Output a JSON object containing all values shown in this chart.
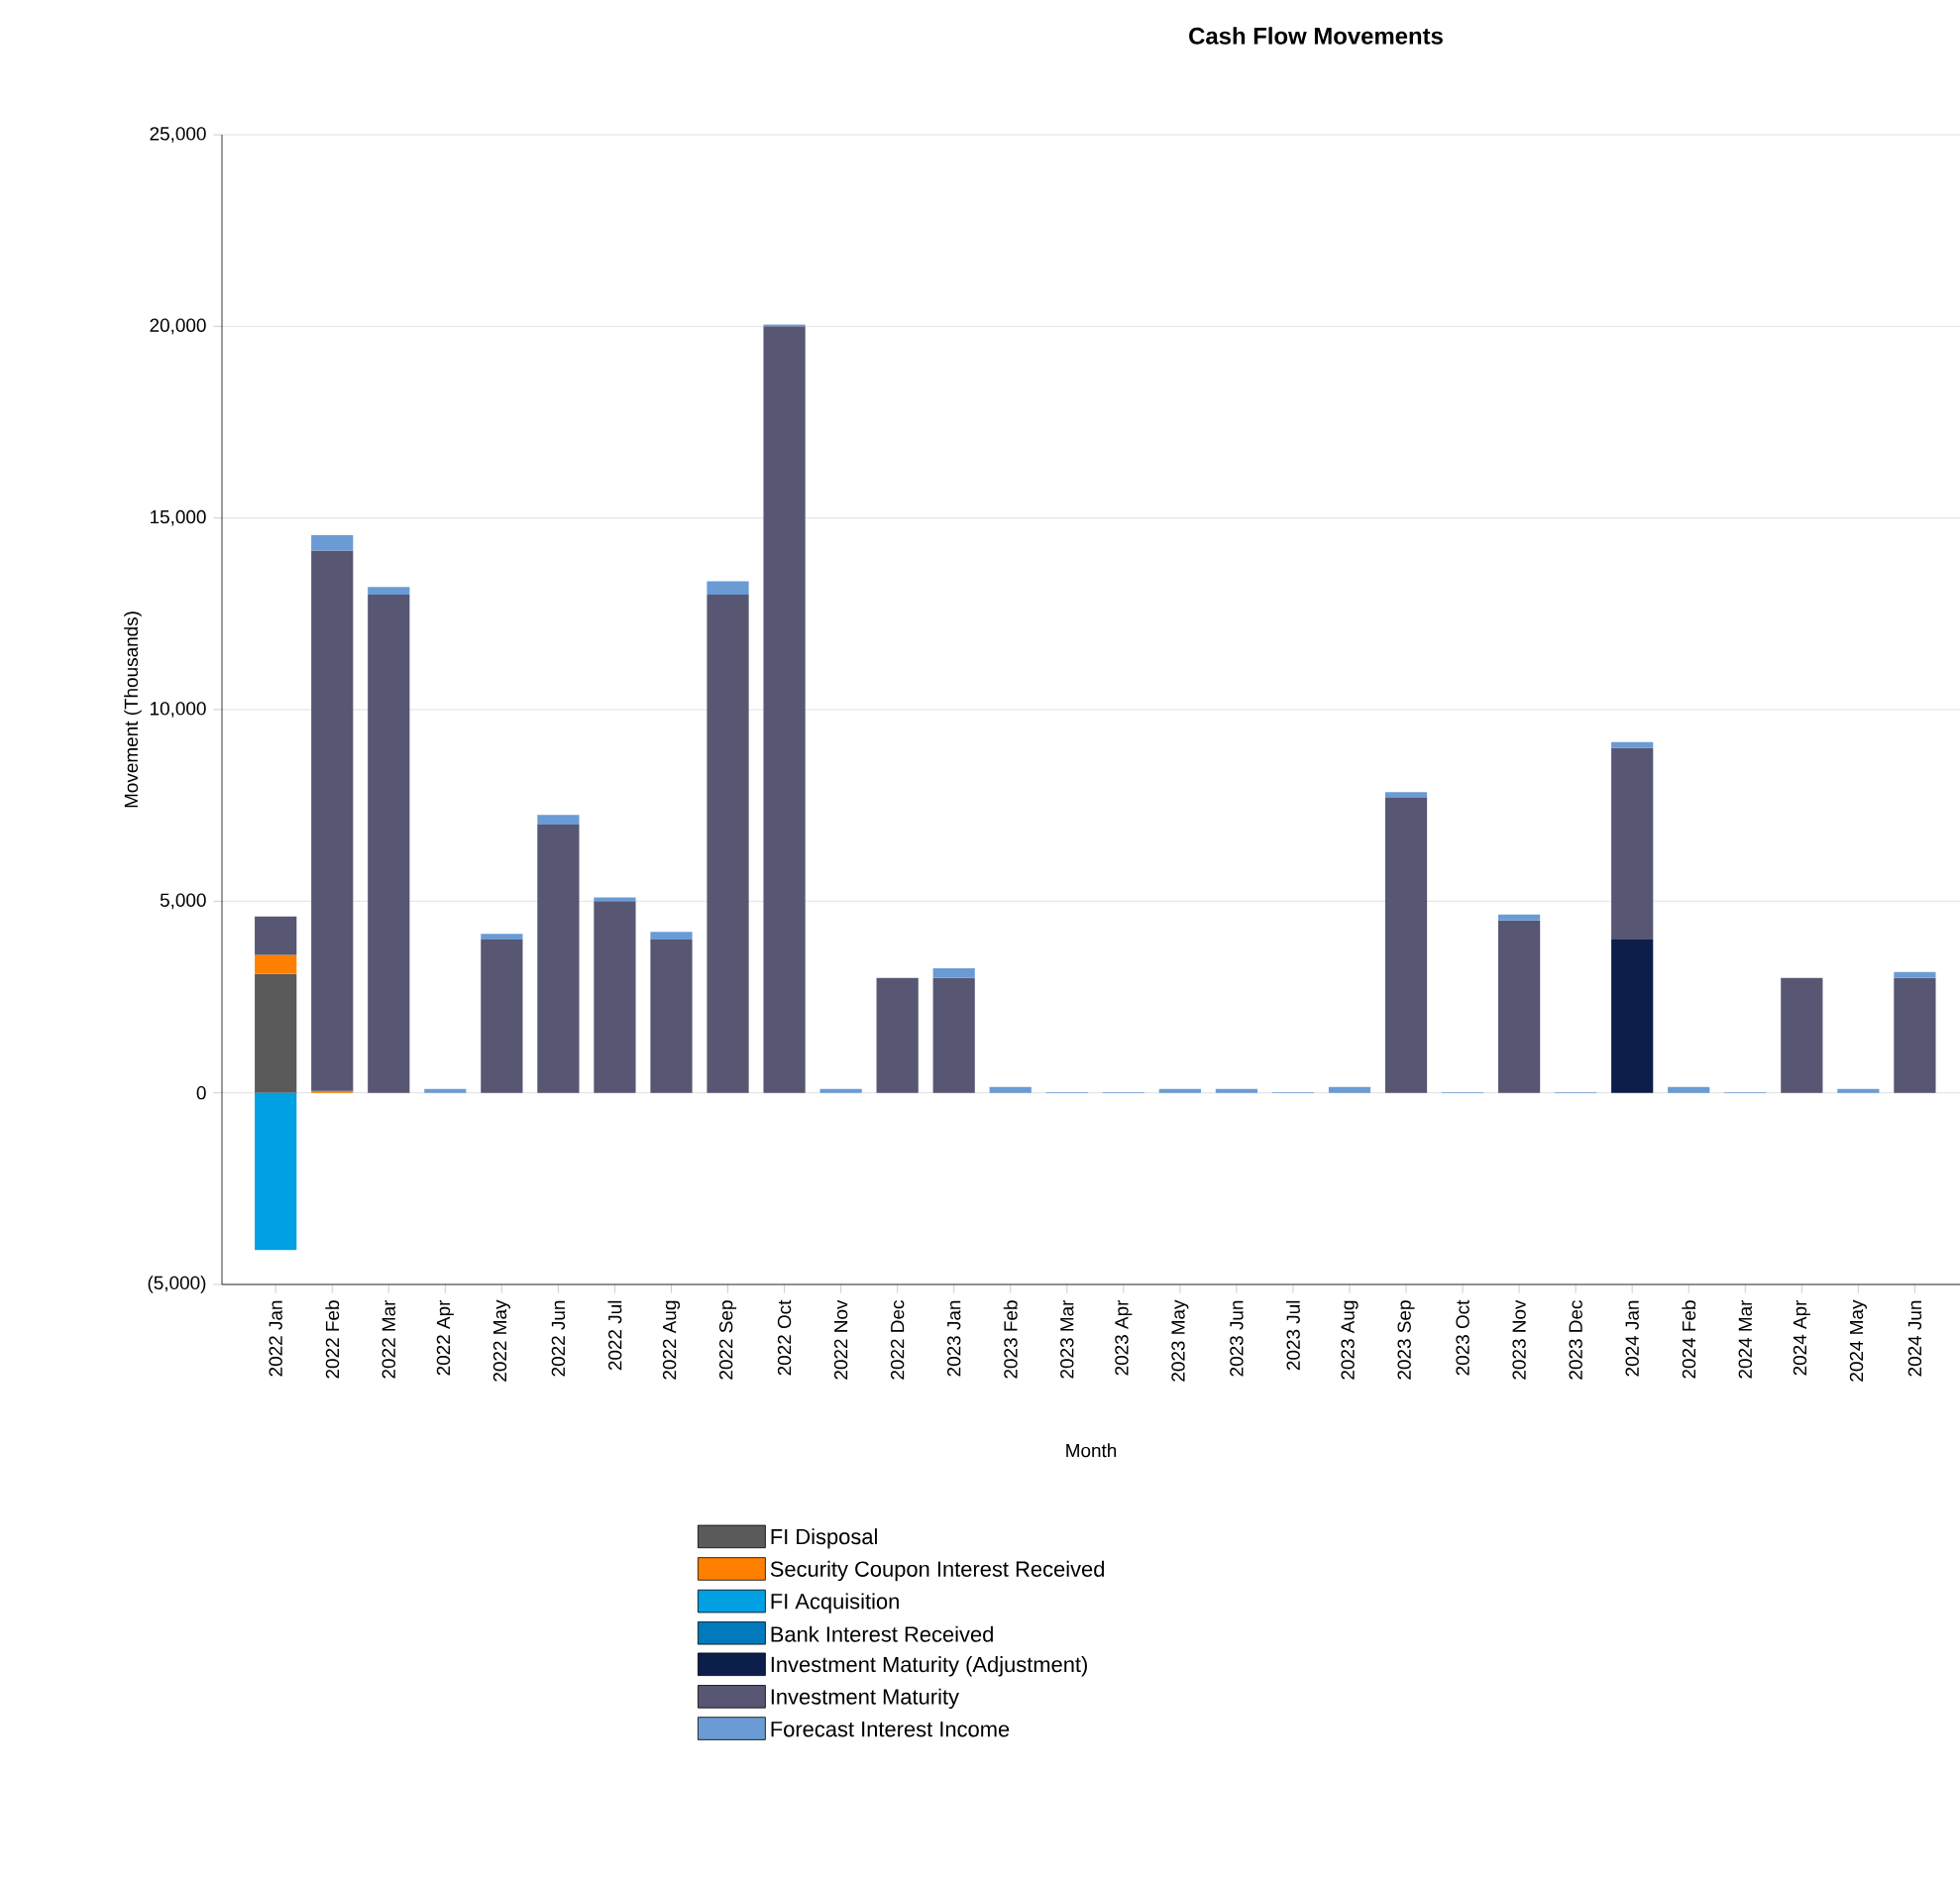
{
  "chart_data": {
    "type": "bar",
    "title": "Cash Flow Movements",
    "xlabel": "Month",
    "ylabel": "Movement (Thousands)",
    "stacked": true,
    "grid": "y",
    "legend": "bottom",
    "categories": [
      "2022 Jan",
      "2022 Feb",
      "2022 Mar",
      "2022 Apr",
      "2022 May",
      "2022 Jun",
      "2022 Jul",
      "2022 Aug",
      "2022 Sep",
      "2022 Oct",
      "2022 Nov",
      "2022 Dec",
      "2023 Jan",
      "2023 Feb",
      "2023 Mar",
      "2023 Apr",
      "2023 May",
      "2023 Jun",
      "2023 Jul",
      "2023 Aug",
      "2023 Sep",
      "2023 Oct",
      "2023 Nov",
      "2023 Dec",
      "2024 Jan",
      "2024 Feb",
      "2024 Mar",
      "2024 Apr",
      "2024 May",
      "2024 Jun"
    ],
    "ylim": [
      -5000,
      25000
    ],
    "yticks": [
      {
        "value": -5000,
        "label": "(5,000)"
      },
      0,
      {
        "value": 5000,
        "label": "5,000"
      },
      {
        "value": 10000,
        "label": "10,000"
      },
      {
        "value": 15000,
        "label": "15,000"
      },
      {
        "value": 20000,
        "label": "20,000"
      },
      {
        "value": 25000,
        "label": "25,000"
      }
    ],
    "series": [
      {
        "name": "FI Disposal",
        "color": "#5a5a5a",
        "values": [
          3100,
          null,
          null,
          null,
          null,
          null,
          null,
          null,
          null,
          null,
          null,
          null,
          null,
          null,
          null,
          null,
          null,
          null,
          null,
          null,
          null,
          null,
          null,
          null,
          null,
          null,
          null,
          null,
          null,
          null
        ]
      },
      {
        "name": "Security Coupon Interest Received",
        "color": "#ff8000",
        "values": [
          500,
          50,
          null,
          null,
          null,
          null,
          null,
          null,
          null,
          null,
          null,
          null,
          null,
          null,
          null,
          null,
          null,
          null,
          null,
          null,
          null,
          null,
          null,
          null,
          null,
          null,
          null,
          null,
          null,
          null
        ]
      },
      {
        "name": "FI Acquisition",
        "color": "#00a0e3",
        "values": [
          -4100,
          null,
          null,
          null,
          null,
          null,
          null,
          null,
          null,
          null,
          null,
          null,
          null,
          null,
          null,
          null,
          null,
          null,
          null,
          null,
          null,
          null,
          null,
          null,
          null,
          null,
          null,
          null,
          null,
          null
        ]
      },
      {
        "name": "Bank Interest Received",
        "color": "#0079bd",
        "values": [
          null,
          null,
          null,
          null,
          null,
          null,
          null,
          null,
          null,
          null,
          null,
          null,
          null,
          null,
          null,
          null,
          null,
          null,
          null,
          null,
          null,
          null,
          null,
          null,
          null,
          null,
          null,
          null,
          null,
          null
        ]
      },
      {
        "name": "Investment Maturity (Adjustment)",
        "color": "#0c1e4a",
        "values": [
          null,
          null,
          null,
          null,
          null,
          null,
          null,
          null,
          null,
          null,
          null,
          null,
          null,
          null,
          null,
          null,
          null,
          null,
          null,
          null,
          null,
          null,
          null,
          null,
          4000,
          null,
          null,
          null,
          null,
          null
        ]
      },
      {
        "name": "Investment Maturity",
        "color": "#575673",
        "values": [
          1000,
          14100,
          13000,
          null,
          4000,
          7000,
          5000,
          4000,
          13000,
          20000,
          null,
          3000,
          3000,
          null,
          null,
          null,
          null,
          null,
          null,
          null,
          7700,
          null,
          4500,
          null,
          5000,
          null,
          null,
          3000,
          null,
          3000
        ]
      },
      {
        "name": "Forecast Interest Income",
        "color": "#6a9bd4",
        "values": [
          null,
          400,
          200,
          100,
          150,
          250,
          100,
          200,
          350,
          50,
          100,
          null,
          250,
          150,
          20,
          20,
          100,
          100,
          20,
          150,
          150,
          20,
          150,
          20,
          150,
          150,
          20,
          null,
          100,
          150
        ]
      }
    ]
  }
}
